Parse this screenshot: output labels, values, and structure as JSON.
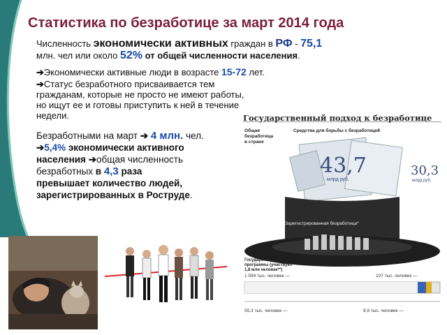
{
  "title": "Статистика по безработице за март 2014 года",
  "para1": {
    "p1": "Численность ",
    "p2": "экономически активных",
    "p3": " граждан в ",
    "p4": "РФ",
    "p5": " - ",
    "p6": "75,1",
    "p7": "млн. чел или около ",
    "p8": "52%",
    "p9": " от общей численности населения",
    "p10": "."
  },
  "row2": {
    "a": "Экономически активные люди в возрасте ",
    "b": "15-72",
    "c": " лет."
  },
  "row3": {
    "l1": "Статус безработного присваивается тем",
    "l2": "гражданам, которые не просто не имеют работы,",
    "l3": "но ищут ее и готовы приступить к ней в течение",
    "l4": "недели."
  },
  "para2": {
    "a": "Безработными на март ",
    "b": "4 млн.",
    "c": " чел.",
    "d": "5,4%",
    "e": " экономически активного",
    "f": "населения",
    "g": "общая численность",
    "h": "безработных ",
    "i": "в ",
    "j": "4,3",
    "k": " раза",
    "l": "превышает количество людей,",
    "m": "зарегистрированных в Роструде",
    "n": "."
  },
  "infographic": {
    "title": "Государственный подход к безработице",
    "sub1": "Общая безработица в стране",
    "sub2": "Средства для борьбы с безработицей",
    "big_num": "43,7",
    "big_unit": "млрд руб.",
    "side_num": "30,3",
    "side_unit": "млрд руб.",
    "reg_label": "Зарегистрированная безработица*",
    "prog_label": "Государственные программы (участвуют 1,8 млн человек**)",
    "n1": "1 594 тыс. человек —",
    "n2": "107 тыс. человек —",
    "n3": "55,3 тыс. человек —",
    "n4": "8,9 тыс. человек —"
  },
  "colors": {
    "title": "#7a1e3e",
    "accent_blue": "#1a4aa8",
    "teal_deco": "#2a7a7a",
    "hat": "#2b2b2b"
  }
}
